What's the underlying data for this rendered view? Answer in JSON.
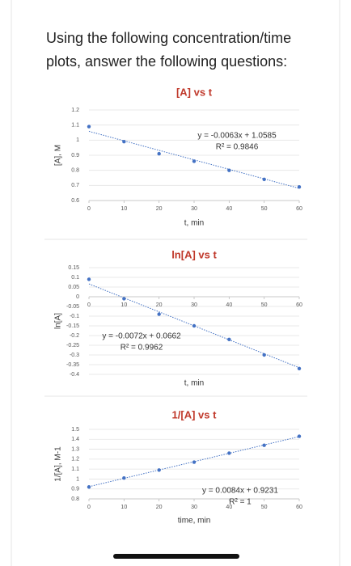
{
  "question": [
    "Using the following concentration/time",
    "plots, answer the following questions:"
  ],
  "chart_data": [
    {
      "type": "scatter",
      "title": "[A] vs t",
      "title_color": "#c0392b",
      "x_label": "t, min",
      "y_label": "[A], M",
      "x": [
        0,
        10,
        20,
        30,
        40,
        50,
        60
      ],
      "series": [
        {
          "color": "#4472c4",
          "values": [
            1.09,
            0.99,
            0.91,
            0.86,
            0.8,
            0.74,
            0.69
          ]
        }
      ],
      "xlim": [
        0,
        60
      ],
      "xticks": [
        0,
        10,
        20,
        30,
        40,
        50,
        60
      ],
      "ylim": [
        0.6,
        1.2
      ],
      "yticks": [
        0.6,
        0.7,
        0.8,
        0.9,
        1,
        1.1,
        1.2
      ],
      "grid": true,
      "trendline": {
        "slope": -0.0063,
        "intercept": 1.0585,
        "equation": "y = -0.0063x + 1.0585",
        "r_squared": "R² = 0.9846"
      }
    },
    {
      "type": "scatter",
      "title": "ln[A] vs t",
      "title_color": "#c0392b",
      "x_label": "t, min",
      "y_label": "ln[A]",
      "x": [
        0,
        10,
        20,
        30,
        40,
        50,
        60
      ],
      "series": [
        {
          "color": "#4472c4",
          "values": [
            0.09,
            -0.01,
            -0.09,
            -0.15,
            -0.22,
            -0.3,
            -0.37
          ]
        }
      ],
      "xlim": [
        0,
        60
      ],
      "xticks": [
        0,
        10,
        20,
        30,
        40,
        50,
        60
      ],
      "ylim": [
        -0.4,
        0.15
      ],
      "yticks": [
        -0.4,
        -0.35,
        -0.3,
        -0.25,
        -0.2,
        -0.15,
        -0.1,
        -0.05,
        0,
        0.05,
        0.1,
        0.15
      ],
      "grid": true,
      "trendline": {
        "slope": -0.0072,
        "intercept": 0.0662,
        "equation": "y = -0.0072x + 0.0662",
        "r_squared": "R² = 0.9962"
      }
    },
    {
      "type": "scatter",
      "title": "1/[A] vs t",
      "title_color": "#c0392b",
      "x_label": "time, min",
      "y_label": "1/[A], M-1",
      "x": [
        0,
        10,
        20,
        30,
        40,
        50,
        60
      ],
      "series": [
        {
          "color": "#4472c4",
          "values": [
            0.92,
            1.01,
            1.09,
            1.17,
            1.26,
            1.34,
            1.43
          ]
        }
      ],
      "xlim": [
        0,
        60
      ],
      "xticks": [
        0,
        10,
        20,
        30,
        40,
        50,
        60
      ],
      "ylim": [
        0.8,
        1.5
      ],
      "yticks": [
        0.8,
        0.9,
        1,
        1.1,
        1.2,
        1.3,
        1.4,
        1.5
      ],
      "grid": true,
      "trendline": {
        "slope": 0.0084,
        "intercept": 0.9231,
        "equation": "y = 0.0084x + 0.9231",
        "r_squared": "R² = 1"
      }
    }
  ]
}
